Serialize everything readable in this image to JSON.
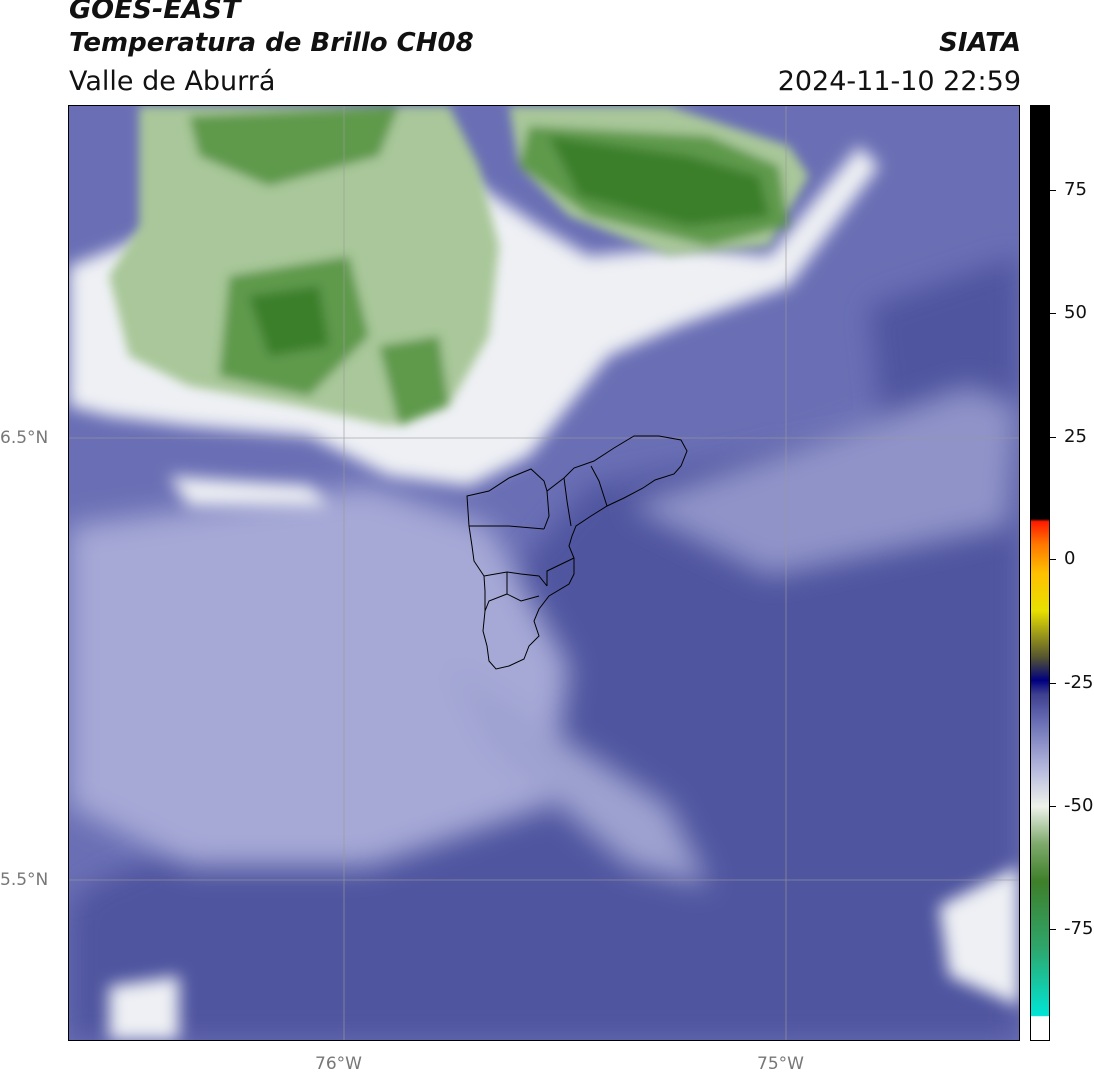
{
  "header": {
    "satellite": "GOES-EAST",
    "product": "Temperatura de Brillo CH08",
    "region": "Valle de Aburrá",
    "organization": "SIATA",
    "timestamp": "2024-11-10 22:59"
  },
  "map": {
    "lat_ticks": [
      "6.5°N",
      "5.5°N"
    ],
    "lon_ticks": [
      "76°W",
      "75°W"
    ],
    "colors": {
      "background_blue": "#6a6fb5",
      "dark_blue": "#4a4f9e",
      "pale": "#eef0f4",
      "green_light": "#a9c79a",
      "green_mid": "#5f9a4c",
      "green_dark": "#3b7f2a",
      "boundary": "#000000",
      "grid": "#9a9a9a"
    }
  },
  "colorbar": {
    "tick_labels": [
      "75",
      "50",
      "25",
      "0",
      "-25",
      "-50",
      "-75"
    ],
    "colors": [
      "#ffffff",
      "#00e5d6",
      "#2fa56a",
      "#3e7f2a",
      "#e9f0e4",
      "#9ea3cf",
      "#4a4f9e",
      "#000080",
      "#c9c000",
      "#ffd400",
      "#ff7a00",
      "#ff0000",
      "#000000"
    ]
  }
}
